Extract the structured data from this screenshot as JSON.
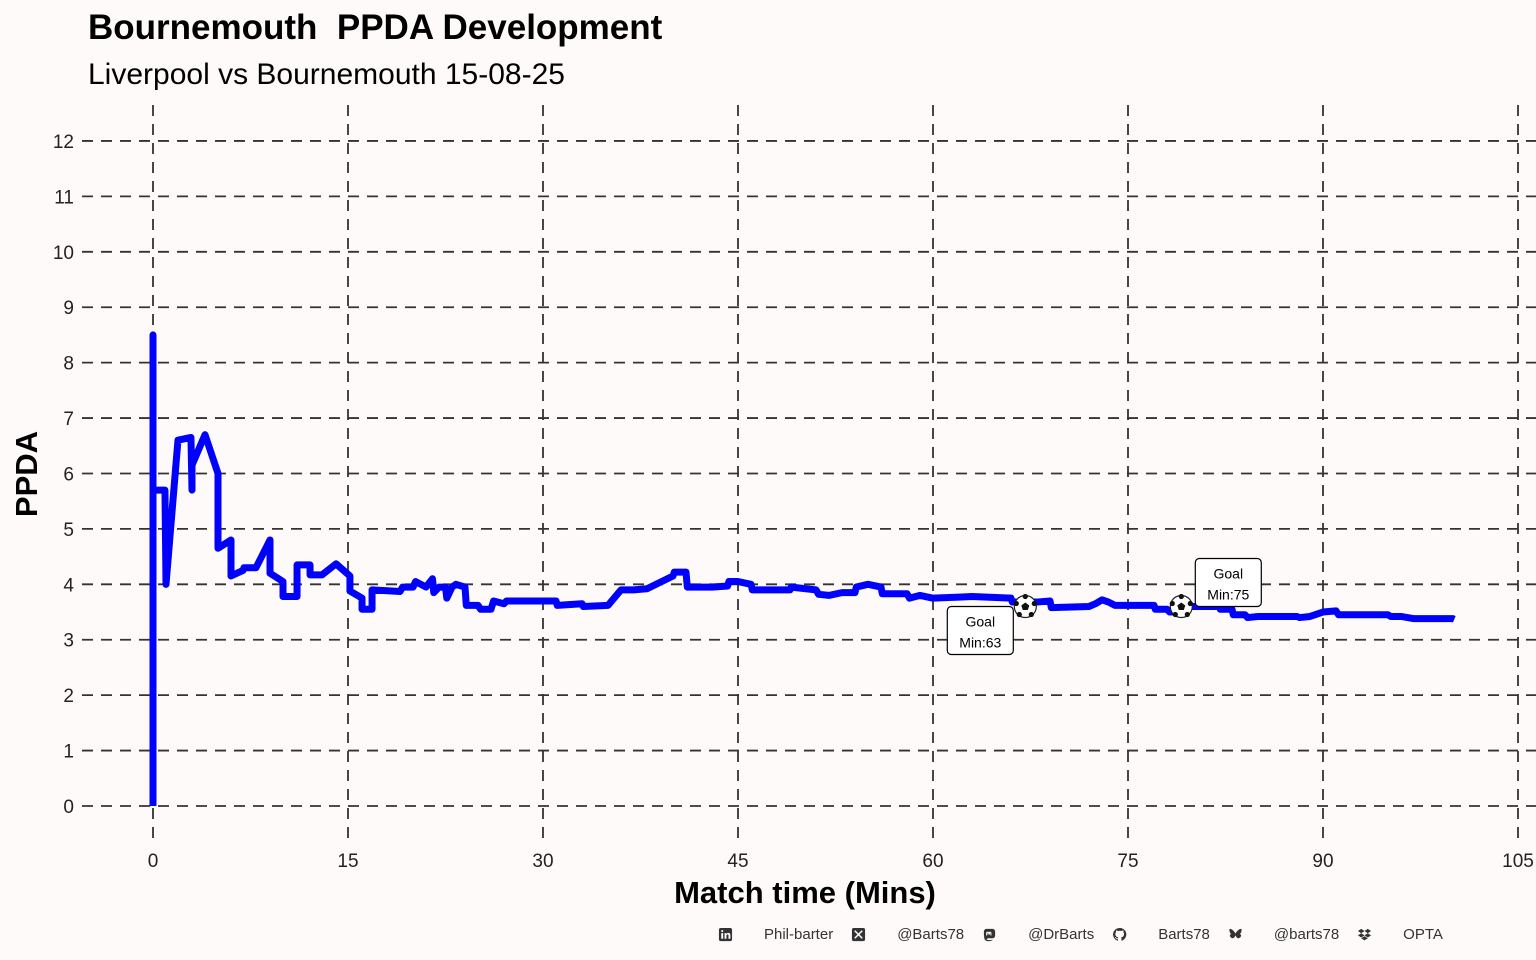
{
  "chart_data": {
    "type": "line",
    "title": "Bournemouth  PPDA Development",
    "subtitle": "Liverpool vs Bournemouth 15-08-25",
    "xlabel": "Match time (Mins)",
    "ylabel": "PPDA",
    "xlim": [
      -5,
      105
    ],
    "ylim": [
      -0.2,
      12.5
    ],
    "x_ticks": [
      0,
      15,
      30,
      45,
      60,
      75,
      90,
      105
    ],
    "y_ticks": [
      0,
      1,
      2,
      3,
      4,
      5,
      6,
      7,
      8,
      9,
      10,
      11,
      12
    ],
    "grid": true,
    "series": [
      {
        "name": "Bournemouth PPDA",
        "color": "#0000ff",
        "x": [
          0,
          0,
          0,
          0.92,
          1.0,
          1.92,
          2.92,
          3.0,
          3.0,
          4.0,
          5.0,
          5.0,
          6.0,
          6.0,
          6.92,
          7.0,
          7.92,
          9.0,
          9.0,
          10.0,
          10.0,
          11.08,
          11.08,
          12.08,
          12.08,
          13.0,
          14.08,
          15.15,
          15.15,
          16.08,
          16.08,
          16.85,
          16.85,
          19,
          19.2,
          20,
          20.2,
          21,
          21.5,
          21.6,
          22,
          22.5,
          22.6,
          23,
          23.3,
          24,
          24.1,
          25,
          25.2,
          26,
          26.2,
          27,
          27.2,
          31,
          31.1,
          33,
          33.1,
          35,
          36,
          37,
          38,
          40,
          40.1,
          41,
          41.1,
          43,
          44.2,
          44.3,
          45,
          46,
          46.1,
          49,
          49.1,
          51,
          51.2,
          52,
          53,
          54,
          54.1,
          55,
          56,
          56.1,
          58,
          58.2,
          59,
          60,
          62,
          63,
          66,
          66.1,
          68,
          69,
          69.1,
          72,
          72.5,
          73,
          73.5,
          74,
          77,
          77.1,
          78,
          78.2,
          79,
          79.1,
          82,
          82.1,
          83,
          83.1,
          84,
          84.2,
          85,
          88,
          88.2,
          89,
          90,
          91,
          91.2,
          94,
          95,
          95.2,
          96,
          97,
          100,
          100.1
        ],
        "y": [
          0,
          8.5,
          5.7,
          5.7,
          4.0,
          6.6,
          6.65,
          5.7,
          6.15,
          6.7,
          6.0,
          4.65,
          4.8,
          4.15,
          4.25,
          4.3,
          4.3,
          4.8,
          4.2,
          4.05,
          3.78,
          3.78,
          4.35,
          4.35,
          4.17,
          4.17,
          4.37,
          4.15,
          3.88,
          3.75,
          3.55,
          3.55,
          3.9,
          3.87,
          3.95,
          3.95,
          4.05,
          3.95,
          4.1,
          3.85,
          3.95,
          3.95,
          3.75,
          3.95,
          4.0,
          3.95,
          3.62,
          3.62,
          3.55,
          3.55,
          3.7,
          3.65,
          3.7,
          3.7,
          3.62,
          3.65,
          3.6,
          3.62,
          3.9,
          3.9,
          3.92,
          4.15,
          4.22,
          4.22,
          3.95,
          3.95,
          3.97,
          4.05,
          4.05,
          4.0,
          3.9,
          3.9,
          3.95,
          3.9,
          3.82,
          3.8,
          3.85,
          3.85,
          3.95,
          4.0,
          3.95,
          3.83,
          3.83,
          3.75,
          3.8,
          3.75,
          3.77,
          3.78,
          3.75,
          3.68,
          3.68,
          3.7,
          3.58,
          3.6,
          3.65,
          3.72,
          3.68,
          3.62,
          3.62,
          3.55,
          3.55,
          3.5,
          3.5,
          3.6,
          3.6,
          3.55,
          3.55,
          3.45,
          3.45,
          3.4,
          3.42,
          3.42,
          3.4,
          3.42,
          3.5,
          3.52,
          3.45,
          3.45,
          3.45,
          3.42,
          3.42,
          3.38,
          3.38,
          3.37
        ]
      }
    ],
    "annotations": [
      {
        "label": "Goal",
        "minute_label": "Min:63",
        "ball_x": 67.1,
        "ball_y": 3.6,
        "position": "below"
      },
      {
        "label": "Goal",
        "minute_label": "Min:75",
        "ball_x": 79.1,
        "ball_y": 3.6,
        "position": "above"
      }
    ]
  },
  "footer": [
    {
      "icon": "linkedin-icon",
      "text": "Phil-barter"
    },
    {
      "icon": "x-icon",
      "text": "@Barts78"
    },
    {
      "icon": "mastodon-icon",
      "text": "@DrBarts"
    },
    {
      "icon": "github-icon",
      "text": "Barts78"
    },
    {
      "icon": "bluesky-icon",
      "text": "@barts78"
    },
    {
      "icon": "dropbox-icon",
      "text": "OPTA"
    }
  ]
}
